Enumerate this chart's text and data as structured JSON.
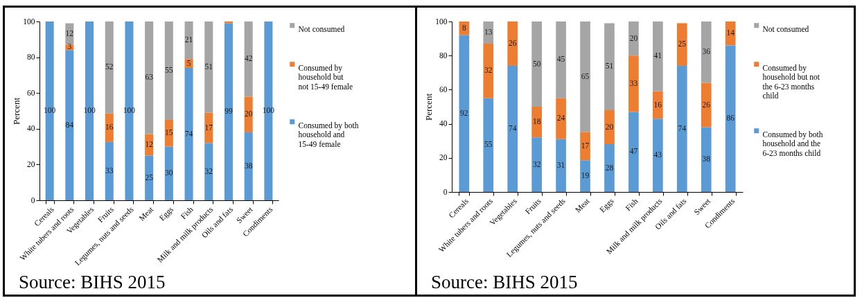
{
  "chart_data": [
    {
      "type": "bar",
      "stacked": true,
      "ylabel": "Percent",
      "ylim": [
        0,
        100
      ],
      "yticks": [
        0,
        20,
        40,
        60,
        80,
        100
      ],
      "legend": "right",
      "categories": [
        "Cereals",
        "White tubers and roots",
        "Vegetables",
        "Fruits",
        "Legumes, nuts and seeds",
        "Meat",
        "Eggs",
        "Fish",
        "Milk and milk products",
        "Oils and fats",
        "Sweet",
        "Condiments"
      ],
      "series": [
        {
          "name": "Consumed by both household and 15-49 female",
          "color": "#5b9bd5",
          "values": [
            100,
            84,
            100,
            32.6,
            100,
            25,
            30,
            74,
            32,
            99,
            38,
            100
          ],
          "value_labels": [
            "100",
            "84",
            "100",
            "33",
            "100",
            "25",
            "30",
            "74",
            "32",
            "99",
            "38",
            "100"
          ]
        },
        {
          "name": "Consumed by household but not 15-49 female",
          "color": "#ed7d31",
          "values": [
            0,
            3,
            0,
            15.9,
            0,
            12,
            15,
            5,
            17,
            1,
            20,
            0
          ],
          "value_labels": [
            null,
            "3",
            null,
            "16",
            null,
            "12",
            "15",
            "5",
            "17",
            null,
            "20",
            null
          ]
        },
        {
          "name": "Not consumed",
          "color": "#a5a5a5",
          "values": [
            0,
            12,
            0,
            51.5,
            0,
            63,
            55,
            21,
            51,
            0,
            42,
            0
          ],
          "value_labels": [
            null,
            "12",
            null,
            "52",
            null,
            "63",
            "55",
            "21",
            "51",
            null,
            "42",
            null
          ]
        }
      ],
      "annotations": [
        "Source: BIHS 2015"
      ]
    },
    {
      "type": "bar",
      "stacked": true,
      "ylabel": "Percent",
      "ylim": [
        0,
        100
      ],
      "yticks": [
        0,
        20,
        40,
        60,
        80,
        100
      ],
      "legend": "right",
      "categories": [
        "Cereals",
        "White tubers and roots",
        "Vegetables",
        "Fruits",
        "Legumes, nuts and seeds",
        "Meat",
        "Eggs",
        "Fish",
        "Milk and milk products",
        "Oils and fats",
        "Sweet",
        "Condiments"
      ],
      "series": [
        {
          "name": "Consumed by both household and the 6-23 months child",
          "color": "#5b9bd5",
          "values": [
            92,
            55,
            74,
            32,
            31,
            18.6,
            28,
            47,
            43,
            74,
            38,
            86
          ],
          "value_labels": [
            "92",
            "55",
            "74",
            "32",
            "31",
            "19",
            "28",
            "47",
            "43",
            "74",
            "38",
            "86"
          ]
        },
        {
          "name": "Consumed by household but not the 6-23 months child",
          "color": "#ed7d31",
          "values": [
            8,
            32,
            26,
            18,
            24,
            16.6,
            20,
            33,
            16,
            25,
            26,
            14
          ],
          "value_labels": [
            "8",
            "32",
            "26",
            "18",
            "24",
            "17",
            "20",
            "33",
            "16",
            "25",
            "26",
            "14"
          ]
        },
        {
          "name": "Not consumed",
          "color": "#a5a5a5",
          "values": [
            0,
            13,
            0,
            50,
            45,
            64.8,
            51,
            20,
            41,
            0,
            36,
            0
          ],
          "value_labels": [
            null,
            "13",
            null,
            "50",
            "45",
            "65",
            "51",
            "20",
            "41",
            null,
            "36",
            null
          ]
        }
      ],
      "annotations": [
        "Source: BIHS 2015"
      ]
    }
  ]
}
